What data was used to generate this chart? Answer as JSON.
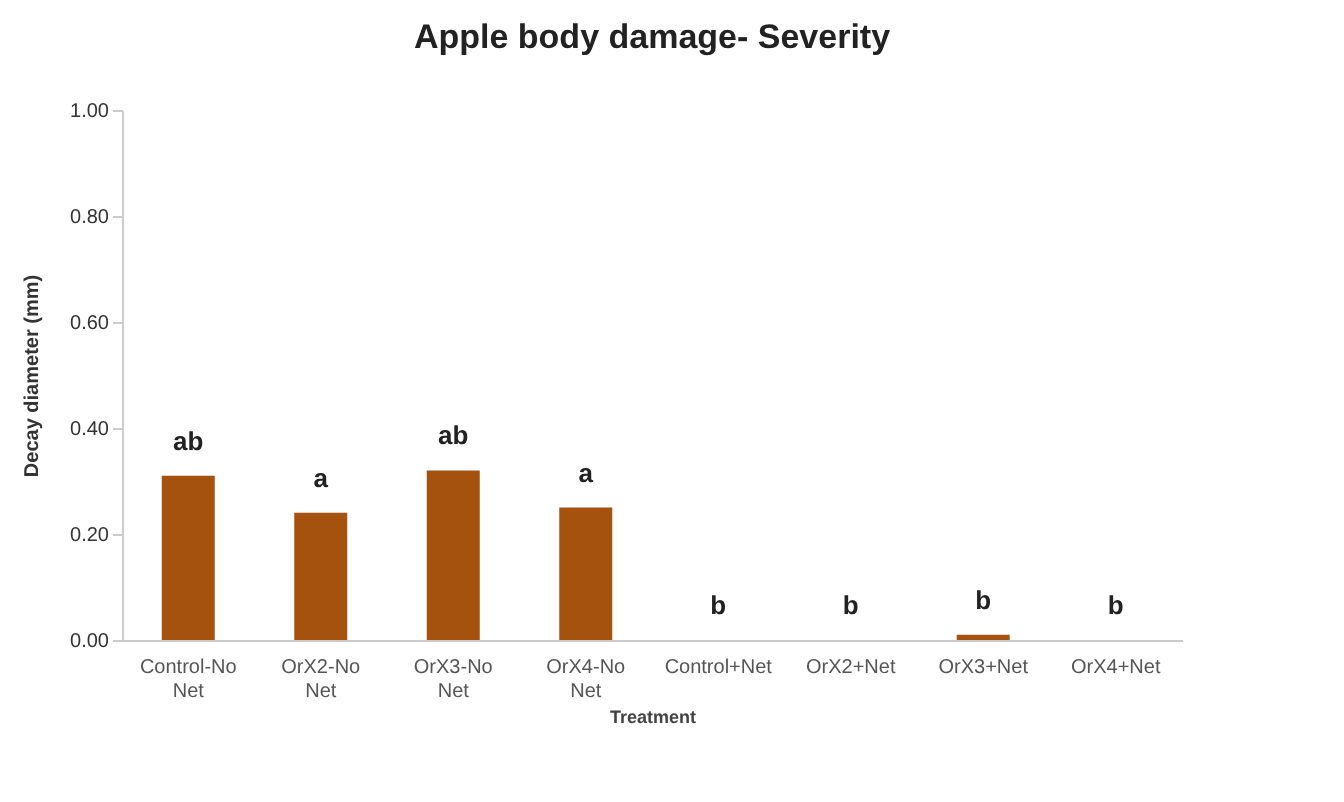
{
  "chart_data": {
    "type": "bar",
    "title": "Apple body damage- Severity",
    "xlabel": "Treatment",
    "ylabel": "Decay diameter (mm)",
    "categories": [
      "Control-No Net",
      "OrX2-No Net",
      "OrX3-No Net",
      "OrX4-No Net",
      "Control+Net",
      "OrX2+Net",
      "OrX3+Net",
      "OrX4+Net"
    ],
    "values": [
      0.31,
      0.24,
      0.32,
      0.25,
      0,
      0,
      0.01,
      0
    ],
    "color": "#a5520f",
    "ylim": [
      0,
      1
    ],
    "yticks": [
      {
        "value": 0,
        "label": "0.00"
      },
      {
        "value": 0.2,
        "label": "0.20"
      },
      {
        "value": 0.4,
        "label": "0.40"
      },
      {
        "value": 0.6,
        "label": "0.60"
      },
      {
        "value": 0.8,
        "label": "0.80"
      },
      {
        "value": 1,
        "label": "1.00"
      }
    ],
    "grid": false,
    "annotations": [
      {
        "text": "ab",
        "x": "Control-No Net",
        "y": 0.31
      },
      {
        "text": "a",
        "x": "OrX2-No Net",
        "y": 0.24
      },
      {
        "text": "ab",
        "x": "OrX3-No Net",
        "y": 0.32
      },
      {
        "text": "a",
        "x": "OrX4-No Net",
        "y": 0.25
      },
      {
        "text": "b",
        "x": "Control+Net",
        "y": 0
      },
      {
        "text": "b",
        "x": "OrX2+Net",
        "y": 0
      },
      {
        "text": "b",
        "x": "OrX3+Net",
        "y": 0.01
      },
      {
        "text": "b",
        "x": "OrX4+Net",
        "y": 0
      }
    ]
  }
}
